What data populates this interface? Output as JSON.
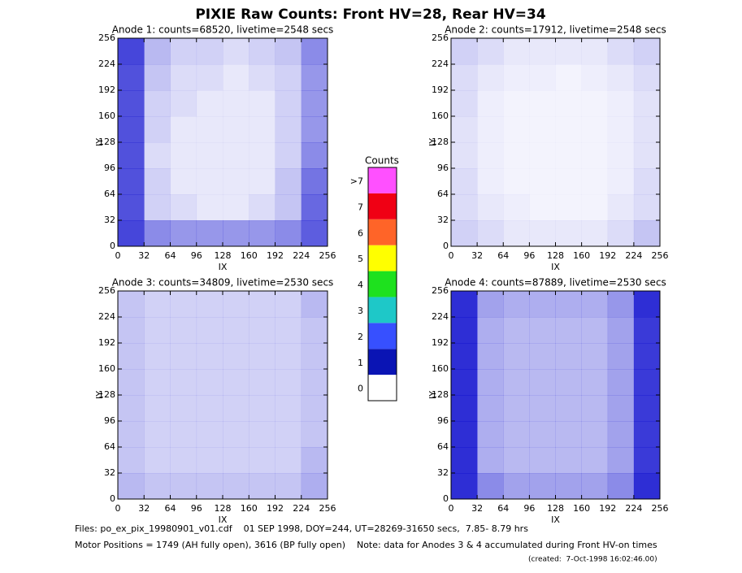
{
  "title": "PIXIE Raw Counts:  Front HV=28, Rear HV=34",
  "colorbar": {
    "title": "Counts",
    "ticks": [
      0,
      1,
      2,
      3,
      4,
      5,
      6,
      7,
      {
        "value": 8,
        "label": ">7"
      }
    ],
    "colors": [
      "#ffffff",
      "#0a14b4",
      "#3750ff",
      "#1ec8c8",
      "#1ee11e",
      "#ffff00",
      "#ff6428",
      "#f00014",
      "#ff50ff"
    ]
  },
  "footer": [
    "Files: po_ex_pix_19980901_v01.cdf    01 SEP 1998, DOY=244, UT=28269-31650 secs,  7.85- 8.79 hrs",
    "Motor Positions = 1749 (AH fully open), 3616 (BP fully open)    Note: data for Anodes 3 & 4 accumulated during Front HV-on times",
    "(created:  7-Oct-1998 16:02:46.00)"
  ],
  "chart_data": [
    {
      "type": "heatmap",
      "title": "Anode 1: counts=68520, livetime=2548 secs",
      "x_label": "IX",
      "y_label": "IY",
      "color": "#0000cc",
      "xlim": [
        0,
        256
      ],
      "ylim": [
        0,
        256
      ],
      "xticks": [
        0,
        32,
        64,
        96,
        128,
        160,
        192,
        224,
        256
      ],
      "yticks": [
        0,
        32,
        64,
        96,
        128,
        160,
        192,
        224,
        256
      ],
      "z": [
        [
          1.6,
          1.0,
          0.9,
          0.9,
          0.9,
          0.9,
          1.0,
          1.4
        ],
        [
          1.5,
          0.4,
          0.3,
          0.2,
          0.2,
          0.3,
          0.5,
          1.3
        ],
        [
          1.5,
          0.4,
          0.2,
          0.2,
          0.2,
          0.2,
          0.5,
          1.2
        ],
        [
          1.5,
          0.3,
          0.2,
          0.2,
          0.2,
          0.2,
          0.4,
          1.0
        ],
        [
          1.5,
          0.4,
          0.2,
          0.2,
          0.2,
          0.2,
          0.4,
          0.9
        ],
        [
          1.5,
          0.4,
          0.3,
          0.2,
          0.2,
          0.2,
          0.4,
          0.9
        ],
        [
          1.5,
          0.5,
          0.3,
          0.3,
          0.2,
          0.3,
          0.4,
          0.9
        ],
        [
          1.6,
          0.6,
          0.4,
          0.4,
          0.3,
          0.4,
          0.5,
          1.0
        ]
      ]
    },
    {
      "type": "heatmap",
      "title": "Anode 2: counts=17912, livetime=2548 secs",
      "x_label": "IX",
      "y_label": "IY",
      "color": "#0000cc",
      "xlim": [
        0,
        256
      ],
      "ylim": [
        0,
        256
      ],
      "xticks": [
        0,
        32,
        64,
        96,
        128,
        160,
        192,
        224,
        256
      ],
      "yticks": [
        0,
        32,
        64,
        96,
        128,
        160,
        192,
        224,
        256
      ],
      "z": [
        [
          0.4,
          0.3,
          0.2,
          0.2,
          0.2,
          0.2,
          0.3,
          0.5
        ],
        [
          0.3,
          0.2,
          0.15,
          0.1,
          0.1,
          0.1,
          0.2,
          0.3
        ],
        [
          0.3,
          0.15,
          0.1,
          0.1,
          0.1,
          0.1,
          0.15,
          0.3
        ],
        [
          0.25,
          0.15,
          0.1,
          0.1,
          0.1,
          0.1,
          0.15,
          0.25
        ],
        [
          0.25,
          0.15,
          0.1,
          0.1,
          0.1,
          0.1,
          0.15,
          0.25
        ],
        [
          0.3,
          0.15,
          0.1,
          0.1,
          0.1,
          0.1,
          0.15,
          0.25
        ],
        [
          0.3,
          0.2,
          0.15,
          0.15,
          0.1,
          0.15,
          0.2,
          0.3
        ],
        [
          0.4,
          0.3,
          0.2,
          0.2,
          0.2,
          0.2,
          0.3,
          0.4
        ]
      ]
    },
    {
      "type": "heatmap",
      "title": "Anode 3: counts=34809, livetime=2530 secs",
      "x_label": "IX",
      "y_label": "IY",
      "color": "#0000cc",
      "xlim": [
        0,
        256
      ],
      "ylim": [
        0,
        256
      ],
      "xticks": [
        0,
        32,
        64,
        96,
        128,
        160,
        192,
        224,
        256
      ],
      "yticks": [
        0,
        32,
        64,
        96,
        128,
        160,
        192,
        224,
        256
      ],
      "z": [
        [
          0.6,
          0.5,
          0.5,
          0.5,
          0.5,
          0.5,
          0.5,
          0.7
        ],
        [
          0.5,
          0.4,
          0.4,
          0.4,
          0.4,
          0.4,
          0.4,
          0.6
        ],
        [
          0.5,
          0.4,
          0.4,
          0.4,
          0.4,
          0.4,
          0.4,
          0.5
        ],
        [
          0.5,
          0.4,
          0.4,
          0.4,
          0.4,
          0.4,
          0.4,
          0.5
        ],
        [
          0.5,
          0.4,
          0.4,
          0.4,
          0.4,
          0.4,
          0.4,
          0.5
        ],
        [
          0.5,
          0.4,
          0.4,
          0.4,
          0.4,
          0.4,
          0.4,
          0.5
        ],
        [
          0.5,
          0.4,
          0.4,
          0.4,
          0.4,
          0.4,
          0.4,
          0.5
        ],
        [
          0.5,
          0.4,
          0.4,
          0.4,
          0.4,
          0.4,
          0.4,
          0.6
        ]
      ]
    },
    {
      "type": "heatmap",
      "title": "Anode 4: counts=87889, livetime=2530 secs",
      "x_label": "IX",
      "y_label": "IY",
      "color": "#0000cc",
      "xlim": [
        0,
        256
      ],
      "ylim": [
        0,
        256
      ],
      "xticks": [
        0,
        32,
        64,
        96,
        128,
        160,
        192,
        224,
        256
      ],
      "yticks": [
        0,
        32,
        64,
        96,
        128,
        160,
        192,
        224,
        256
      ],
      "z": [
        [
          1.8,
          1.0,
          0.8,
          0.8,
          0.8,
          0.8,
          1.0,
          1.8
        ],
        [
          1.8,
          0.7,
          0.6,
          0.6,
          0.6,
          0.6,
          0.8,
          1.7
        ],
        [
          1.8,
          0.7,
          0.6,
          0.6,
          0.6,
          0.6,
          0.8,
          1.7
        ],
        [
          1.8,
          0.7,
          0.6,
          0.6,
          0.6,
          0.6,
          0.8,
          1.7
        ],
        [
          1.8,
          0.7,
          0.6,
          0.6,
          0.6,
          0.6,
          0.8,
          1.7
        ],
        [
          1.8,
          0.7,
          0.6,
          0.6,
          0.6,
          0.6,
          0.8,
          1.7
        ],
        [
          1.8,
          0.7,
          0.6,
          0.6,
          0.6,
          0.6,
          0.8,
          1.7
        ],
        [
          1.8,
          0.8,
          0.7,
          0.7,
          0.7,
          0.7,
          0.9,
          1.8
        ]
      ]
    }
  ]
}
